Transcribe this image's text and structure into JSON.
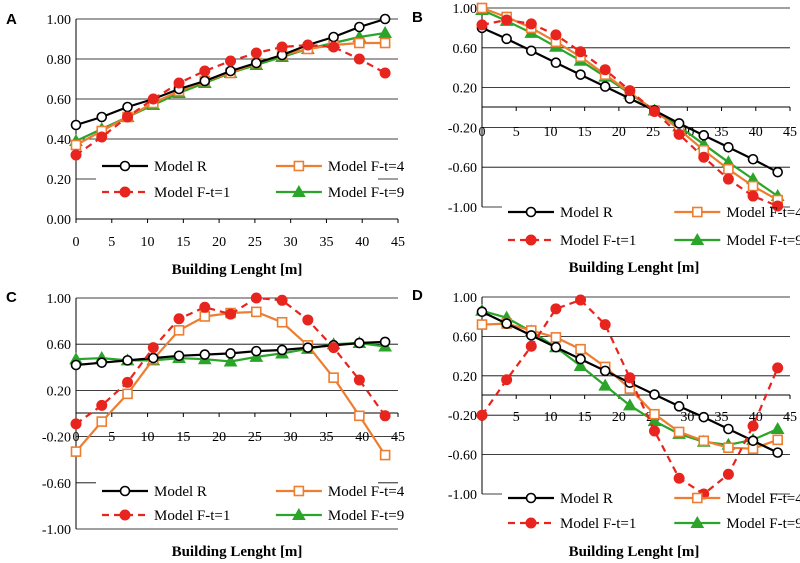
{
  "legend": {
    "model_r": "Model R",
    "model_f4": "Model F-t=4",
    "model_f1": "Model F-t=1",
    "model_f9": "Model F-t=9"
  },
  "colors": {
    "model_r": "#000000",
    "model_f4": "#ED7D31",
    "model_f1": "#E8241E",
    "model_f9": "#2AA52A",
    "grid": "#000000"
  },
  "chart_data": [
    {
      "type": "line",
      "panel": "A",
      "xlabel": "Building Lenght [m]",
      "ylabel": "",
      "xlim": [
        0,
        45
      ],
      "ylim": [
        0,
        1
      ],
      "xticks": [
        "0",
        "5",
        "10",
        "15",
        "20",
        "25",
        "30",
        "35",
        "40",
        "45"
      ],
      "yticks": [
        "0.00",
        "0.20",
        "0.40",
        "0.60",
        "0.80",
        "1.00"
      ],
      "x": [
        0,
        3.6,
        7.2,
        10.8,
        14.4,
        18,
        21.6,
        25.2,
        28.8,
        32.4,
        36,
        39.6,
        43.2
      ],
      "series": [
        {
          "name": "Model R",
          "key": "model_r",
          "values": [
            0.47,
            0.51,
            0.56,
            0.6,
            0.65,
            0.69,
            0.74,
            0.78,
            0.82,
            0.87,
            0.91,
            0.96,
            1.0
          ]
        },
        {
          "name": "Model F-t=4",
          "key": "model_f4",
          "values": [
            0.37,
            0.44,
            0.51,
            0.58,
            0.64,
            0.69,
            0.73,
            0.78,
            0.82,
            0.85,
            0.87,
            0.88,
            0.88
          ]
        },
        {
          "name": "Model F-t=1",
          "key": "model_f1",
          "values": [
            0.32,
            0.41,
            0.51,
            0.6,
            0.68,
            0.74,
            0.79,
            0.83,
            0.86,
            0.87,
            0.86,
            0.8,
            0.73
          ]
        },
        {
          "name": "Model F-t=9",
          "key": "model_f9",
          "values": [
            0.39,
            0.45,
            0.51,
            0.57,
            0.63,
            0.68,
            0.73,
            0.77,
            0.81,
            0.85,
            0.88,
            0.91,
            0.93
          ]
        }
      ]
    },
    {
      "type": "line",
      "panel": "B",
      "xlabel": "Building Lenght [m]",
      "ylabel": "",
      "xlim": [
        0,
        45
      ],
      "ylim": [
        -1,
        1
      ],
      "xticks": [
        "0",
        "5",
        "10",
        "15",
        "20",
        "25",
        "30",
        "35",
        "40",
        "45"
      ],
      "yticks": [
        "-1.00",
        "-0.60",
        "-0.20",
        "0.20",
        "0.60",
        "1.00"
      ],
      "x": [
        0,
        3.6,
        7.2,
        10.8,
        14.4,
        18,
        21.6,
        25.2,
        28.8,
        32.4,
        36,
        39.6,
        43.2
      ],
      "series": [
        {
          "name": "Model R",
          "key": "model_r",
          "values": [
            0.8,
            0.69,
            0.57,
            0.45,
            0.33,
            0.21,
            0.09,
            -0.03,
            -0.16,
            -0.28,
            -0.4,
            -0.52,
            -0.65
          ]
        },
        {
          "name": "Model F-t=4",
          "key": "model_f4",
          "values": [
            1.0,
            0.91,
            0.8,
            0.66,
            0.51,
            0.33,
            0.15,
            -0.03,
            -0.22,
            -0.43,
            -0.62,
            -0.79,
            -0.93
          ]
        },
        {
          "name": "Model F-t=1",
          "key": "model_f1",
          "values": [
            0.83,
            0.88,
            0.84,
            0.73,
            0.56,
            0.38,
            0.17,
            -0.04,
            -0.27,
            -0.5,
            -0.72,
            -0.89,
            -0.99
          ]
        },
        {
          "name": "Model F-t=9",
          "key": "model_f9",
          "values": [
            0.98,
            0.87,
            0.75,
            0.61,
            0.47,
            0.31,
            0.14,
            -0.03,
            -0.19,
            -0.37,
            -0.55,
            -0.72,
            -0.89
          ]
        }
      ]
    },
    {
      "type": "line",
      "panel": "C",
      "xlabel": "Building Lenght [m]",
      "ylabel": "",
      "xlim": [
        0,
        45
      ],
      "ylim": [
        -1,
        1
      ],
      "xticks": [
        "0",
        "5",
        "10",
        "15",
        "20",
        "25",
        "30",
        "35",
        "40",
        "45"
      ],
      "yticks": [
        "-1.00",
        "-0.60",
        "-0.20",
        "0.20",
        "0.60",
        "1.00"
      ],
      "x": [
        0,
        3.6,
        7.2,
        10.8,
        14.4,
        18,
        21.6,
        25.2,
        28.8,
        32.4,
        36,
        39.6,
        43.2
      ],
      "series": [
        {
          "name": "Model R",
          "key": "model_r",
          "values": [
            0.42,
            0.44,
            0.46,
            0.48,
            0.5,
            0.51,
            0.52,
            0.54,
            0.55,
            0.57,
            0.59,
            0.61,
            0.62
          ]
        },
        {
          "name": "Model F-t=4",
          "key": "model_f4",
          "values": [
            -0.33,
            -0.07,
            0.17,
            0.47,
            0.72,
            0.84,
            0.87,
            0.88,
            0.79,
            0.59,
            0.31,
            -0.02,
            -0.36
          ]
        },
        {
          "name": "Model F-t=1",
          "key": "model_f1",
          "values": [
            -0.09,
            0.07,
            0.27,
            0.57,
            0.82,
            0.92,
            0.86,
            1.0,
            0.98,
            0.81,
            0.57,
            0.29,
            -0.02
          ]
        },
        {
          "name": "Model F-t=9",
          "key": "model_f9",
          "values": [
            0.47,
            0.48,
            0.46,
            0.46,
            0.48,
            0.47,
            0.45,
            0.49,
            0.52,
            0.56,
            0.6,
            0.61,
            0.58
          ]
        }
      ]
    },
    {
      "type": "line",
      "panel": "D",
      "xlabel": "Building Lenght [m]",
      "ylabel": "",
      "xlim": [
        0,
        45
      ],
      "ylim": [
        -1,
        1
      ],
      "xticks": [
        "0",
        "5",
        "10",
        "15",
        "20",
        "25",
        "30",
        "35",
        "40",
        "45"
      ],
      "yticks": [
        "-1.00",
        "-0.60",
        "-0.20",
        "0.20",
        "0.60",
        "1.00"
      ],
      "x": [
        0,
        3.6,
        7.2,
        10.8,
        14.4,
        18,
        21.6,
        25.2,
        28.8,
        32.4,
        36,
        39.6,
        43.2
      ],
      "series": [
        {
          "name": "Model R",
          "key": "model_r",
          "values": [
            0.85,
            0.73,
            0.61,
            0.49,
            0.37,
            0.25,
            0.13,
            0.01,
            -0.11,
            -0.22,
            -0.34,
            -0.46,
            -0.58
          ]
        },
        {
          "name": "Model F-t=4",
          "key": "model_f4",
          "values": [
            0.72,
            0.73,
            0.66,
            0.59,
            0.47,
            0.29,
            0.07,
            -0.19,
            -0.37,
            -0.46,
            -0.53,
            -0.54,
            -0.45
          ]
        },
        {
          "name": "Model F-t=1",
          "key": "model_f1",
          "values": [
            -0.2,
            0.16,
            0.5,
            0.88,
            0.97,
            0.72,
            0.18,
            -0.36,
            -0.84,
            -1.0,
            -0.8,
            -0.31,
            0.28
          ]
        },
        {
          "name": "Model F-t=9",
          "key": "model_f9",
          "values": [
            0.86,
            0.79,
            0.65,
            0.49,
            0.3,
            0.1,
            -0.1,
            -0.26,
            -0.39,
            -0.47,
            -0.5,
            -0.45,
            -0.34
          ]
        }
      ]
    }
  ]
}
